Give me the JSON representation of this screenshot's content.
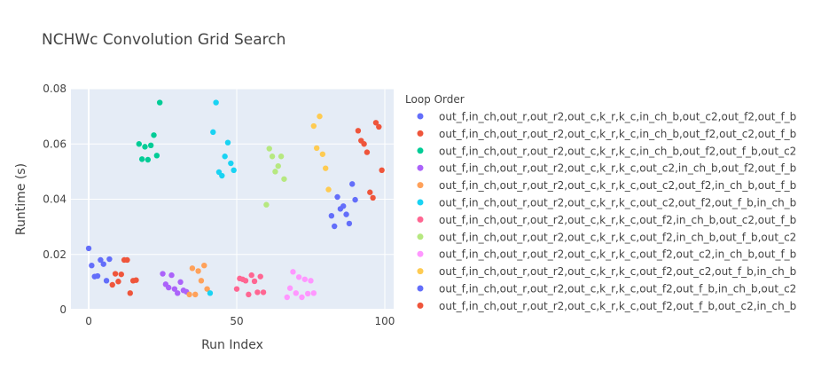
{
  "chart_data": {
    "type": "scatter",
    "title": "NCHWc Convolution Grid Search",
    "xlabel": "Run Index",
    "ylabel": "Runtime (s)",
    "xlim": [
      -6,
      103
    ],
    "ylim": [
      0,
      0.08
    ],
    "xticks": [
      0,
      50,
      100
    ],
    "yticks": [
      0,
      0.02,
      0.04,
      0.06,
      0.08
    ],
    "ytick_labels": [
      "0",
      "0.02",
      "0.04",
      "0.06",
      "0.08"
    ],
    "legend": {
      "title": "Loop Order",
      "position": "right"
    },
    "series": [
      {
        "name": "out_f,in_ch,out_r,out_r2,out_c,k_r,k_c,in_ch_b,out_c2,out_f2,out_f_b",
        "color": "#636efa",
        "x": [
          0,
          1,
          2,
          3,
          4,
          5,
          6,
          7
        ],
        "y": [
          0.0222,
          0.016,
          0.012,
          0.0122,
          0.018,
          0.0165,
          0.0105,
          0.0183
        ]
      },
      {
        "name": "out_f,in_ch,out_r,out_r2,out_c,k_r,k_c,in_ch_b,out_f2,out_c2,out_f_b",
        "color": "#EF553B",
        "x": [
          8,
          9,
          10,
          11,
          12,
          13,
          14,
          15,
          16
        ],
        "y": [
          0.009,
          0.013,
          0.0102,
          0.0128,
          0.018,
          0.018,
          0.006,
          0.0105,
          0.0107
        ]
      },
      {
        "name": "out_f,in_ch,out_r,out_r2,out_c,k_r,k_c,in_ch_b,out_f2,out_f_b,out_c2",
        "color": "#00cc96",
        "x": [
          17,
          18,
          19,
          20,
          21,
          22,
          23,
          24
        ],
        "y": [
          0.06,
          0.0545,
          0.059,
          0.0543,
          0.0595,
          0.0632,
          0.0558,
          0.075
        ]
      },
      {
        "name": "out_f,in_ch,out_r,out_r2,out_c,k_r,k_c,out_c2,in_ch_b,out_f2,out_f_b",
        "color": "#ab63fa",
        "x": [
          25,
          26,
          27,
          28,
          29,
          30,
          31,
          32,
          33
        ],
        "y": [
          0.013,
          0.0092,
          0.008,
          0.0125,
          0.0075,
          0.006,
          0.01,
          0.007,
          0.0065
        ]
      },
      {
        "name": "out_f,in_ch,out_r,out_r2,out_c,k_r,k_c,out_c2,out_f2,in_ch_b,out_f_b",
        "color": "#FFA15A",
        "x": [
          34,
          35,
          36,
          37,
          38,
          39,
          40
        ],
        "y": [
          0.0055,
          0.015,
          0.0055,
          0.014,
          0.0105,
          0.016,
          0.0075
        ]
      },
      {
        "name": "out_f,in_ch,out_r,out_r2,out_c,k_r,k_c,out_c2,out_f2,out_f_b,in_ch_b",
        "color": "#19d3f3",
        "x": [
          41,
          42,
          43,
          44,
          45,
          46,
          47,
          48,
          49
        ],
        "y": [
          0.006,
          0.0643,
          0.075,
          0.0498,
          0.0485,
          0.0555,
          0.0605,
          0.053,
          0.0505
        ]
      },
      {
        "name": "out_f,in_ch,out_r,out_r2,out_c,k_r,k_c,out_f2,in_ch_b,out_c2,out_f_b",
        "color": "#FF6692",
        "x": [
          50,
          51,
          52,
          53,
          54,
          55,
          56,
          57,
          58,
          59
        ],
        "y": [
          0.0075,
          0.0113,
          0.011,
          0.0105,
          0.0055,
          0.0125,
          0.0103,
          0.0063,
          0.012,
          0.0063
        ]
      },
      {
        "name": "out_f,in_ch,out_r,out_r2,out_c,k_r,k_c,out_f2,in_ch_b,out_f_b,out_c2",
        "color": "#B6E880",
        "x": [
          60,
          61,
          62,
          63,
          64,
          65,
          66
        ],
        "y": [
          0.038,
          0.0583,
          0.0555,
          0.05,
          0.052,
          0.0555,
          0.0473
        ]
      },
      {
        "name": "out_f,in_ch,out_r,out_r2,out_c,k_r,k_c,out_f2,out_c2,in_ch_b,out_f_b",
        "color": "#FF97FF",
        "x": [
          67,
          68,
          69,
          70,
          71,
          72,
          73,
          74,
          75,
          76
        ],
        "y": [
          0.0045,
          0.0078,
          0.0137,
          0.006,
          0.0118,
          0.0045,
          0.011,
          0.0058,
          0.0105,
          0.006
        ]
      },
      {
        "name": "out_f,in_ch,out_r,out_r2,out_c,k_r,k_c,out_f2,out_c2,out_f_b,in_ch_b",
        "color": "#FECB52",
        "x": [
          76,
          77,
          78,
          79,
          80,
          81
        ],
        "y": [
          0.0665,
          0.0585,
          0.07,
          0.0563,
          0.0512,
          0.0435
        ]
      },
      {
        "name": "out_f,in_ch,out_r,out_r2,out_c,k_r,k_c,out_f2,out_f_b,in_ch_b,out_c2",
        "color": "#636efa",
        "x": [
          82,
          83,
          84,
          85,
          86,
          87,
          88,
          89,
          90
        ],
        "y": [
          0.034,
          0.0302,
          0.0408,
          0.0365,
          0.0375,
          0.0345,
          0.0312,
          0.0455,
          0.0398
        ]
      },
      {
        "name": "out_f,in_ch,out_r,out_r2,out_c,k_r,k_c,out_f2,out_f_b,out_c2,in_ch_b",
        "color": "#EF553B",
        "x": [
          91,
          92,
          93,
          94,
          95,
          96,
          97,
          98,
          99
        ],
        "y": [
          0.0648,
          0.0612,
          0.06,
          0.057,
          0.0425,
          0.0405,
          0.0677,
          0.0662,
          0.0505
        ]
      }
    ]
  }
}
